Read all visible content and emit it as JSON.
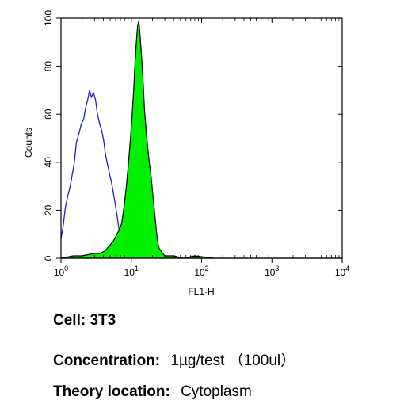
{
  "chart_data": {
    "type": "area",
    "xlabel": "FL1-H",
    "ylabel": "Counts",
    "x_scale": "log",
    "xlim": [
      1,
      10000
    ],
    "ylim": [
      0,
      100
    ],
    "x_ticks": [
      {
        "base": "10",
        "exp": "0"
      },
      {
        "base": "10",
        "exp": "1"
      },
      {
        "base": "10",
        "exp": "2"
      },
      {
        "base": "10",
        "exp": "3"
      },
      {
        "base": "10",
        "exp": "4"
      }
    ],
    "y_ticks": [
      "0",
      "20",
      "40",
      "60",
      "80",
      "100"
    ],
    "y_tick_values": [
      0,
      20,
      40,
      60,
      80,
      100
    ],
    "series": [
      {
        "style": "outline",
        "color": "#1f1fc8",
        "x": [
          1.0,
          1.08,
          1.15,
          1.25,
          1.35,
          1.45,
          1.55,
          1.65,
          1.8,
          1.95,
          2.1,
          2.25,
          2.4,
          2.55,
          2.7,
          2.9,
          3.1,
          3.3,
          3.55,
          3.8,
          4.05,
          4.3,
          4.6,
          4.9,
          5.2,
          5.5,
          5.8,
          6.1,
          6.4,
          6.7,
          7.0,
          7.3,
          7.6
        ],
        "y": [
          8,
          14,
          21,
          26,
          30,
          35,
          40,
          48,
          52,
          56,
          58,
          63,
          66,
          70,
          67,
          69,
          66,
          60,
          56,
          53,
          49,
          43,
          39,
          35,
          32,
          28,
          24,
          20,
          16,
          12,
          6,
          2,
          0
        ]
      },
      {
        "style": "filled",
        "color": "#00f000",
        "x": [
          1.0,
          1.5,
          2.0,
          3.0,
          3.6,
          4.2,
          4.8,
          5.5,
          6.0,
          6.5,
          7.2,
          7.6,
          8.0,
          8.5,
          9.0,
          9.6,
          10.2,
          10.8,
          11.3,
          11.8,
          12.3,
          12.8,
          13.4,
          14.0,
          14.7,
          15.4,
          16.2,
          17.0,
          18.0,
          19.0,
          20.0,
          21.0,
          22.0,
          23.0,
          24.0,
          25.0,
          26.5,
          28.0,
          30.0,
          33.0,
          40.0,
          55.0,
          80.0,
          150.0,
          400.0,
          1000.0,
          3000.0,
          10000.0
        ],
        "y": [
          0,
          1,
          1,
          2,
          2,
          3,
          5,
          7,
          9,
          11,
          14,
          18,
          23,
          30,
          38,
          48,
          58,
          70,
          82,
          90,
          97,
          99,
          92,
          84,
          74,
          62,
          54,
          47,
          40,
          35,
          28,
          22,
          16,
          10,
          6,
          4,
          3,
          2,
          1,
          1,
          1,
          0,
          1,
          0,
          0,
          0,
          0,
          0
        ]
      }
    ]
  },
  "info": {
    "cell_label": "Cell:",
    "cell_value": "3T3",
    "conc_label": "Concentration:",
    "conc_value": "1µg/test （100ul）",
    "loc_label": "Theory location:",
    "loc_value": "Cytoplasm"
  }
}
